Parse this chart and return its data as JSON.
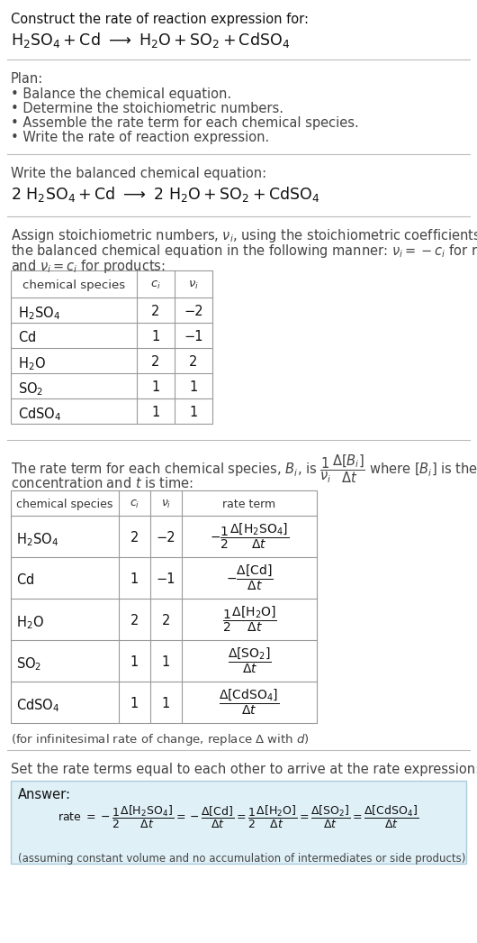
{
  "bg_color": "#ffffff",
  "text_color": "#000000",
  "gray_text": "#444444",
  "table_border_color": "#999999",
  "separator_color": "#bbbbbb",
  "answer_box_color": "#dff0f7",
  "answer_box_border": "#aaccdd",
  "section1_line1": "Construct the rate of reaction expression for:",
  "section2_bullets": [
    "• Balance the chemical equation.",
    "• Determine the stoichiometric numbers.",
    "• Assemble the rate term for each chemical species.",
    "• Write the rate of reaction expression."
  ],
  "table1_rows": [
    [
      "H_2SO_4",
      "2",
      "-2"
    ],
    [
      "Cd",
      "1",
      "-1"
    ],
    [
      "H_2O",
      "2",
      "2"
    ],
    [
      "SO_2",
      "1",
      "1"
    ],
    [
      "CdSO_4",
      "1",
      "1"
    ]
  ],
  "table2_rows": [
    [
      "H_2SO_4",
      "2",
      "-2"
    ],
    [
      "Cd",
      "1",
      "-1"
    ],
    [
      "H_2O",
      "2",
      "2"
    ],
    [
      "SO_2",
      "1",
      "1"
    ],
    [
      "CdSO_4",
      "1",
      "1"
    ]
  ]
}
